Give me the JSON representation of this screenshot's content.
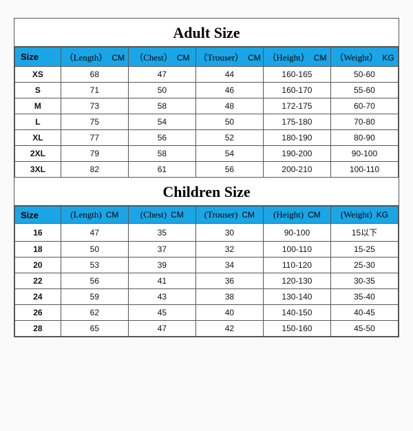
{
  "colors": {
    "header_bg": "#1aa6e6",
    "border": "#555555",
    "text": "#111111",
    "title": "#000000",
    "background": "#ffffff"
  },
  "adult": {
    "title": "Adult Size",
    "columns": [
      {
        "label": "Size",
        "unit": ""
      },
      {
        "label": "（Length）",
        "unit": "CM"
      },
      {
        "label": "（Chest）",
        "unit": "CM"
      },
      {
        "label": "（Trouser）",
        "unit": "CM"
      },
      {
        "label": "（Height）",
        "unit": "CM"
      },
      {
        "label": "（Weight）",
        "unit": "KG"
      }
    ],
    "rows": [
      [
        "XS",
        "68",
        "47",
        "44",
        "160-165",
        "50-60"
      ],
      [
        "S",
        "71",
        "50",
        "46",
        "160-170",
        "55-60"
      ],
      [
        "M",
        "73",
        "58",
        "48",
        "172-175",
        "60-70"
      ],
      [
        "L",
        "75",
        "54",
        "50",
        "175-180",
        "70-80"
      ],
      [
        "XL",
        "77",
        "56",
        "52",
        "180-190",
        "80-90"
      ],
      [
        "2XL",
        "79",
        "58",
        "54",
        "190-200",
        "90-100"
      ],
      [
        "3XL",
        "82",
        "61",
        "56",
        "200-210",
        "100-110"
      ]
    ]
  },
  "children": {
    "title": "Children Size",
    "columns": [
      {
        "label": "Size",
        "unit": ""
      },
      {
        "label": "(Length)",
        "unit": "CM"
      },
      {
        "label": "(Chest)",
        "unit": "CM"
      },
      {
        "label": "(Trouser)",
        "unit": "CM"
      },
      {
        "label": "(Height)",
        "unit": "CM"
      },
      {
        "label": "(Weight)",
        "unit": "KG"
      }
    ],
    "rows": [
      [
        "16",
        "47",
        "35",
        "30",
        "90-100",
        "15以下"
      ],
      [
        "18",
        "50",
        "37",
        "32",
        "100-110",
        "15-25"
      ],
      [
        "20",
        "53",
        "39",
        "34",
        "110-120",
        "25-30"
      ],
      [
        "22",
        "56",
        "41",
        "36",
        "120-130",
        "30-35"
      ],
      [
        "24",
        "59",
        "43",
        "38",
        "130-140",
        "35-40"
      ],
      [
        "26",
        "62",
        "45",
        "40",
        "140-150",
        "40-45"
      ],
      [
        "28",
        "65",
        "47",
        "42",
        "150-160",
        "45-50"
      ]
    ]
  }
}
